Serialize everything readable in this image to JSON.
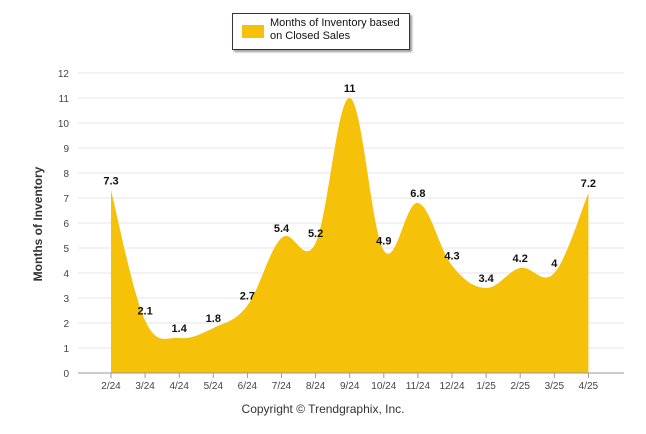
{
  "chart_data": {
    "type": "area",
    "categories": [
      "2/24",
      "3/24",
      "4/24",
      "5/24",
      "6/24",
      "7/24",
      "8/24",
      "9/24",
      "10/24",
      "11/24",
      "12/24",
      "1/25",
      "2/25",
      "3/25",
      "4/25"
    ],
    "series": [
      {
        "name": "Months of Inventory based on Closed Sales",
        "values": [
          7.3,
          2.1,
          1.4,
          1.8,
          2.7,
          5.4,
          5.2,
          11,
          4.9,
          6.8,
          4.3,
          3.4,
          4.2,
          4,
          7.2
        ],
        "color": "#F5C109"
      }
    ],
    "ylabel": "Months of Inventory",
    "xlabel": "",
    "ylim": [
      0,
      12
    ],
    "yticks": [
      "0",
      "1",
      "2",
      "3",
      "4",
      "5",
      "6",
      "7",
      "8",
      "9",
      "10",
      "11",
      "12"
    ],
    "grid": true,
    "legend_position": "top"
  },
  "legend": {
    "label": "Months of Inventory based on Closed Sales"
  },
  "footer": {
    "copyright": "Copyright © Trendgraphix, Inc."
  }
}
